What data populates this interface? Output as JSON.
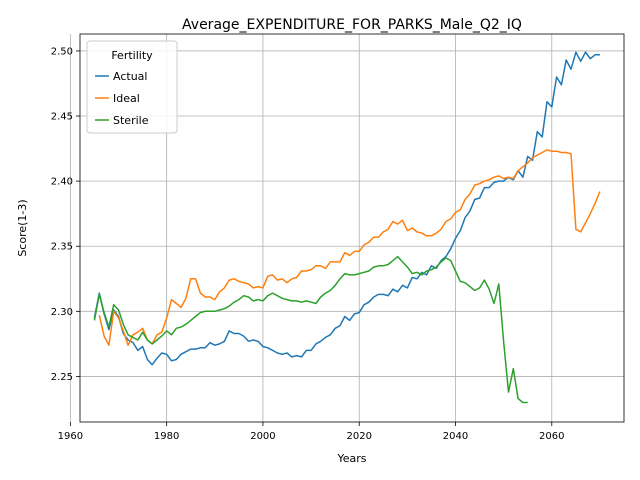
{
  "chart_data": {
    "type": "line",
    "title": "Average_EXPENDITURE_FOR_PARKS_Male_Q2_IQ",
    "xlabel": "Years",
    "ylabel": "Score(1-3)",
    "xlim": [
      1962,
      2075
    ],
    "ylim": [
      2.215,
      2.513
    ],
    "xticks": [
      1960,
      1980,
      2000,
      2020,
      2040,
      2060
    ],
    "yticks": [
      2.25,
      2.3,
      2.35,
      2.4,
      2.45,
      2.5
    ],
    "xtick_labels": [
      "1960",
      "1980",
      "2000",
      "2020",
      "2040",
      "2060"
    ],
    "ytick_labels": [
      "2.25",
      "2.30",
      "2.35",
      "2.40",
      "2.45",
      "2.50"
    ],
    "grid": true,
    "legend": {
      "title": "Fertility",
      "position": "upper-left",
      "entries": [
        "Actual",
        "Ideal",
        "Sterile"
      ]
    },
    "series": [
      {
        "name": "Actual",
        "color": "#1f77b4",
        "x": [
          1965,
          1966,
          1967,
          1968,
          1969,
          1970,
          1971,
          1972,
          1973,
          1974,
          1975,
          1976,
          1977,
          1978,
          1979,
          1980,
          1981,
          1982,
          1983,
          1984,
          1985,
          1986,
          1987,
          1988,
          1989,
          1990,
          1991,
          1992,
          1993,
          1994,
          1995,
          1996,
          1997,
          1998,
          1999,
          2000,
          2001,
          2002,
          2003,
          2004,
          2005,
          2006,
          2007,
          2008,
          2009,
          2010,
          2011,
          2012,
          2013,
          2014,
          2015,
          2016,
          2017,
          2018,
          2019,
          2020,
          2021,
          2022,
          2023,
          2024,
          2025,
          2026,
          2027,
          2028,
          2029,
          2030,
          2031,
          2032,
          2033,
          2034,
          2035,
          2036,
          2037,
          2038,
          2039,
          2040,
          2041,
          2042,
          2043,
          2044,
          2045,
          2046,
          2047,
          2048,
          2049,
          2050,
          2051,
          2052,
          2053,
          2054,
          2055,
          2056,
          2057,
          2058,
          2059,
          2060,
          2061,
          2062,
          2063,
          2064,
          2065,
          2066,
          2067,
          2068,
          2069,
          2070
        ],
        "values": [
          2.295,
          2.314,
          2.298,
          2.286,
          2.301,
          2.296,
          2.283,
          2.278,
          2.276,
          2.27,
          2.273,
          2.263,
          2.259,
          2.264,
          2.268,
          2.267,
          2.262,
          2.263,
          2.267,
          2.269,
          2.271,
          2.271,
          2.272,
          2.272,
          2.276,
          2.274,
          2.275,
          2.277,
          2.285,
          2.283,
          2.283,
          2.281,
          2.277,
          2.278,
          2.277,
          2.273,
          2.272,
          2.27,
          2.268,
          2.267,
          2.268,
          2.265,
          2.266,
          2.265,
          2.27,
          2.27,
          2.275,
          2.277,
          2.28,
          2.282,
          2.287,
          2.289,
          2.296,
          2.293,
          2.298,
          2.299,
          2.305,
          2.307,
          2.311,
          2.313,
          2.313,
          2.312,
          2.317,
          2.315,
          2.32,
          2.318,
          2.326,
          2.325,
          2.33,
          2.328,
          2.335,
          2.333,
          2.339,
          2.342,
          2.348,
          2.356,
          2.362,
          2.372,
          2.377,
          2.386,
          2.387,
          2.395,
          2.395,
          2.399,
          2.4,
          2.4,
          2.403,
          2.401,
          2.408,
          2.403,
          2.419,
          2.416,
          2.438,
          2.434,
          2.461,
          2.457,
          2.48,
          2.474,
          2.493,
          2.486,
          2.499,
          2.492,
          2.499,
          2.494,
          2.497,
          2.497
        ]
      },
      {
        "name": "Ideal",
        "color": "#ff7f0e",
        "x": [
          1966,
          1967,
          1968,
          1969,
          1970,
          1971,
          1972,
          1973,
          1974,
          1975,
          1976,
          1977,
          1978,
          1979,
          1980,
          1981,
          1982,
          1983,
          1984,
          1985,
          1986,
          1987,
          1988,
          1989,
          1990,
          1991,
          1992,
          1993,
          1994,
          1995,
          1996,
          1997,
          1998,
          1999,
          2000,
          2001,
          2002,
          2003,
          2004,
          2005,
          2006,
          2007,
          2008,
          2009,
          2010,
          2011,
          2012,
          2013,
          2014,
          2015,
          2016,
          2017,
          2018,
          2019,
          2020,
          2021,
          2022,
          2023,
          2024,
          2025,
          2026,
          2027,
          2028,
          2029,
          2030,
          2031,
          2032,
          2033,
          2034,
          2035,
          2036,
          2037,
          2038,
          2039,
          2040,
          2041,
          2042,
          2043,
          2044,
          2045,
          2046,
          2047,
          2048,
          2049,
          2050,
          2051,
          2052,
          2053,
          2054,
          2055,
          2056,
          2057,
          2058,
          2059,
          2060,
          2061,
          2062,
          2063,
          2064,
          2065,
          2066,
          2067,
          2068,
          2069,
          2070
        ],
        "values": [
          2.297,
          2.281,
          2.274,
          2.3,
          2.295,
          2.285,
          2.274,
          2.282,
          2.284,
          2.287,
          2.278,
          2.275,
          2.282,
          2.284,
          2.295,
          2.309,
          2.306,
          2.303,
          2.31,
          2.325,
          2.325,
          2.314,
          2.311,
          2.311,
          2.309,
          2.315,
          2.318,
          2.324,
          2.325,
          2.323,
          2.322,
          2.321,
          2.318,
          2.319,
          2.318,
          2.327,
          2.328,
          2.324,
          2.325,
          2.322,
          2.325,
          2.326,
          2.331,
          2.331,
          2.332,
          2.335,
          2.335,
          2.333,
          2.338,
          2.338,
          2.338,
          2.345,
          2.343,
          2.346,
          2.346,
          2.351,
          2.353,
          2.357,
          2.357,
          2.361,
          2.363,
          2.369,
          2.367,
          2.37,
          2.362,
          2.364,
          2.361,
          2.36,
          2.358,
          2.358,
          2.36,
          2.363,
          2.369,
          2.371,
          2.376,
          2.378,
          2.386,
          2.39,
          2.397,
          2.398,
          2.4,
          2.401,
          2.403,
          2.404,
          2.402,
          2.403,
          2.402,
          2.408,
          2.411,
          2.414,
          2.418,
          2.42,
          2.422,
          2.424,
          2.423,
          2.423,
          2.422,
          2.422,
          2.421,
          2.363,
          2.361,
          2.368,
          2.375,
          2.383,
          2.392
        ]
      },
      {
        "name": "Sterile",
        "color": "#2ca02c",
        "x": [
          1965,
          1966,
          1967,
          1968,
          1969,
          1970,
          1971,
          1972,
          1973,
          1974,
          1975,
          1976,
          1977,
          1978,
          1979,
          1980,
          1981,
          1982,
          1983,
          1984,
          1985,
          1986,
          1987,
          1988,
          1989,
          1990,
          1991,
          1992,
          1993,
          1994,
          1995,
          1996,
          1997,
          1998,
          1999,
          2000,
          2001,
          2002,
          2003,
          2004,
          2005,
          2006,
          2007,
          2008,
          2009,
          2010,
          2011,
          2012,
          2013,
          2014,
          2015,
          2016,
          2017,
          2018,
          2019,
          2020,
          2021,
          2022,
          2023,
          2024,
          2025,
          2026,
          2027,
          2028,
          2029,
          2030,
          2031,
          2032,
          2033,
          2034,
          2035,
          2036,
          2037,
          2038,
          2039,
          2040,
          2041,
          2042,
          2043,
          2044,
          2045,
          2046,
          2047,
          2048,
          2049,
          2050,
          2051,
          2052,
          2053,
          2054,
          2055
        ],
        "values": [
          2.293,
          2.313,
          2.299,
          2.288,
          2.305,
          2.301,
          2.29,
          2.282,
          2.28,
          2.278,
          2.284,
          2.278,
          2.275,
          2.278,
          2.281,
          2.285,
          2.282,
          2.287,
          2.288,
          2.29,
          2.293,
          2.296,
          2.299,
          2.3,
          2.3,
          2.3,
          2.301,
          2.302,
          2.304,
          2.307,
          2.309,
          2.312,
          2.311,
          2.308,
          2.309,
          2.308,
          2.312,
          2.314,
          2.312,
          2.31,
          2.309,
          2.308,
          2.308,
          2.307,
          2.308,
          2.307,
          2.306,
          2.311,
          2.314,
          2.316,
          2.32,
          2.325,
          2.329,
          2.328,
          2.328,
          2.329,
          2.33,
          2.331,
          2.334,
          2.335,
          2.335,
          2.336,
          2.339,
          2.342,
          2.338,
          2.334,
          2.329,
          2.33,
          2.328,
          2.331,
          2.332,
          2.334,
          2.338,
          2.341,
          2.339,
          2.331,
          2.323,
          2.322,
          2.319,
          2.316,
          2.318,
          2.324,
          2.317,
          2.306,
          2.321,
          2.277,
          2.238,
          2.256,
          2.233,
          2.23,
          2.23
        ]
      }
    ]
  }
}
